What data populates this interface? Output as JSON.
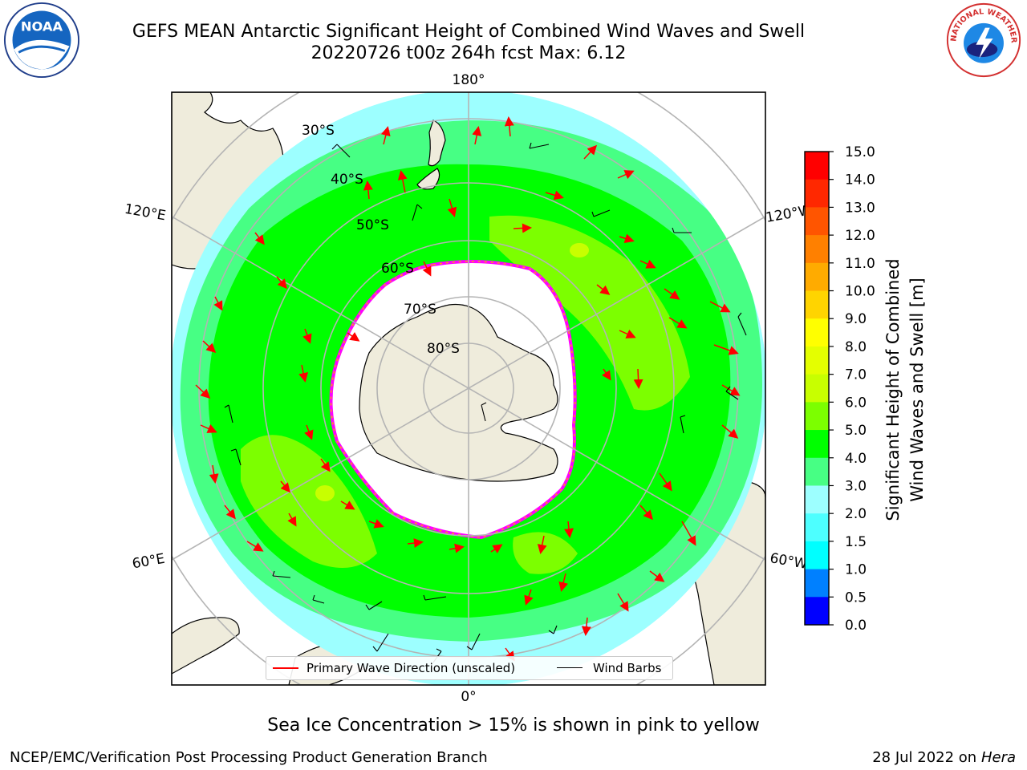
{
  "header": {
    "title_line1": "GEFS MEAN Antarctic Significant Height of Combined Wind Waves and Swell",
    "title_line2": "20220726 t00z 264h fcst   Max: 6.12"
  },
  "logos": {
    "noaa": {
      "text": "NOAA",
      "icon": "noaa-logo-icon"
    },
    "nws": {
      "text": "NATIONAL WEATHER SERVICE",
      "icon": "nws-logo-icon"
    }
  },
  "map": {
    "projection": "south-polar-stereographic",
    "longitude_labels": {
      "top": "180°",
      "bottom": "0°",
      "left_upper": "120°E",
      "left_lower": "60°E",
      "right_upper": "120°W",
      "right_lower": "60°W"
    },
    "latitude_labels": [
      "30°S",
      "40°S",
      "50°S",
      "60°S",
      "70°S",
      "80°S"
    ],
    "colors": {
      "land": "#efecdc",
      "ice": "#ffffff",
      "ice_edge": "#ff00ff",
      "ocean_low": "#9dffff",
      "ocean_mid": "#47ff84",
      "ocean_high": "#00ff00",
      "wave_high": "#7cff00",
      "graticule": "#b4b4b4",
      "coast": "#000000",
      "arrow": "#ff0000"
    }
  },
  "legend": {
    "primary_wave": "Primary Wave Direction (unscaled)",
    "wind_barbs": "Wind Barbs"
  },
  "colorbar": {
    "label_line1": "Significant Height of Combined",
    "label_line2": "Wind Waves and Swell [m]",
    "ticks": [
      "15.0",
      "14.0",
      "13.0",
      "12.0",
      "11.0",
      "10.0",
      "9.0",
      "8.0",
      "7.0",
      "6.0",
      "5.0",
      "4.0",
      "3.0",
      "2.0",
      "1.5",
      "1.0",
      "0.5",
      "0.0"
    ],
    "colors": [
      "#ff0000",
      "#ff2800",
      "#ff5500",
      "#ff8000",
      "#ffab00",
      "#ffd400",
      "#ffff00",
      "#e4ff00",
      "#c8ff00",
      "#7cff00",
      "#00ff00",
      "#47ff84",
      "#9dffff",
      "#4dffff",
      "#00ffff",
      "#0080ff",
      "#0000ff"
    ]
  },
  "note": "Sea Ice Concentration > 15% is shown in pink to yellow",
  "footer": {
    "left": "NCEP/EMC/Verification Post Processing Product Generation Branch",
    "date": "28 Jul 2022 on ",
    "machine": "Hera"
  }
}
